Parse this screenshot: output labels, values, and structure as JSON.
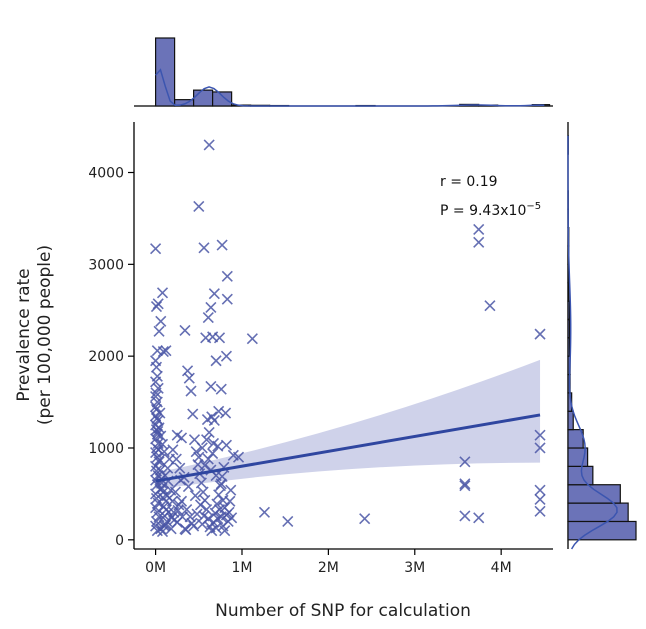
{
  "chart_data": {
    "type": "scatter",
    "title": "",
    "xlabel": "Number of SNP for calculation",
    "ylabel_line1": "Prevalence rate",
    "ylabel_line2": "(per 100,000 people)",
    "xlim": [
      -250000,
      4600000
    ],
    "ylim": [
      -100,
      4550
    ],
    "x_ticks": [
      0,
      1000000,
      2000000,
      3000000,
      4000000
    ],
    "x_tick_labels": [
      "0M",
      "1M",
      "2M",
      "3M",
      "4M"
    ],
    "y_ticks": [
      0,
      1000,
      2000,
      3000,
      4000
    ],
    "y_tick_labels": [
      "0",
      "1000",
      "2000",
      "3000",
      "4000"
    ],
    "grid": false,
    "marker": "x",
    "colors": {
      "points": "#4a56a6",
      "regression": "#2f46a0",
      "ci_band": "#c7cae6",
      "hist_fill": "#6b73b8",
      "kde": "#3b55b0"
    },
    "annotation": {
      "r_text": "r = 0.19",
      "p_prefix": "P = 9.43x10",
      "p_exponent": "−5"
    },
    "regression": {
      "x": [
        0,
        4450000
      ],
      "y": [
        640,
        1360
      ],
      "ci_upper_end": 1960,
      "ci_lower_end": 840
    },
    "marginal_x": {
      "bins": [
        {
          "x0": 0,
          "x1": 220000,
          "count": 300
        },
        {
          "x0": 220000,
          "x1": 440000,
          "count": 28
        },
        {
          "x0": 440000,
          "x1": 660000,
          "count": 70
        },
        {
          "x0": 660000,
          "x1": 880000,
          "count": 62
        },
        {
          "x0": 880000,
          "x1": 1100000,
          "count": 4
        },
        {
          "x0": 1100000,
          "x1": 1320000,
          "count": 3
        },
        {
          "x0": 1320000,
          "x1": 1540000,
          "count": 2
        },
        {
          "x0": 2320000,
          "x1": 2540000,
          "count": 2
        },
        {
          "x0": 3520000,
          "x1": 3740000,
          "count": 7
        },
        {
          "x0": 3740000,
          "x1": 3960000,
          "count": 4
        },
        {
          "x0": 4360000,
          "x1": 4560000,
          "count": 6
        }
      ],
      "max_count": 300
    },
    "marginal_y": {
      "bins": [
        {
          "y0": 0,
          "y1": 200,
          "count": 260
        },
        {
          "y0": 200,
          "y1": 400,
          "count": 230
        },
        {
          "y0": 400,
          "y1": 600,
          "count": 200
        },
        {
          "y0": 600,
          "y1": 800,
          "count": 95
        },
        {
          "y0": 800,
          "y1": 1000,
          "count": 75
        },
        {
          "y0": 1000,
          "y1": 1200,
          "count": 58
        },
        {
          "y0": 1200,
          "y1": 1400,
          "count": 20
        },
        {
          "y0": 1400,
          "y1": 1600,
          "count": 14
        },
        {
          "y0": 1600,
          "y1": 1800,
          "count": 8
        },
        {
          "y0": 1800,
          "y1": 2000,
          "count": 8
        },
        {
          "y0": 2000,
          "y1": 2200,
          "count": 6
        },
        {
          "y0": 2200,
          "y1": 2400,
          "count": 6
        },
        {
          "y0": 2400,
          "y1": 2600,
          "count": 6
        },
        {
          "y0": 2600,
          "y1": 2800,
          "count": 3
        },
        {
          "y0": 2800,
          "y1": 3000,
          "count": 2
        },
        {
          "y0": 3000,
          "y1": 3200,
          "count": 3
        },
        {
          "y0": 3200,
          "y1": 3400,
          "count": 3
        },
        {
          "y0": 3400,
          "y1": 3600,
          "count": 1
        },
        {
          "y0": 3600,
          "y1": 3800,
          "count": 1
        },
        {
          "y0": 4200,
          "y1": 4400,
          "count": 1
        }
      ],
      "max_count": 260
    },
    "points": [
      [
        0,
        3170
      ],
      [
        10000,
        2540
      ],
      [
        30000,
        2570
      ],
      [
        60000,
        2380
      ],
      [
        80000,
        2690
      ],
      [
        90000,
        2050
      ],
      [
        120000,
        2060
      ],
      [
        40000,
        2270
      ],
      [
        20000,
        2060
      ],
      [
        0,
        1950
      ],
      [
        10000,
        1880
      ],
      [
        20000,
        1780
      ],
      [
        0,
        1720
      ],
      [
        30000,
        1650
      ],
      [
        0,
        1560
      ],
      [
        20000,
        1500
      ],
      [
        10000,
        1420
      ],
      [
        0,
        1350
      ],
      [
        30000,
        1300
      ],
      [
        0,
        1250
      ],
      [
        10000,
        1200
      ],
      [
        20000,
        1150
      ],
      [
        0,
        1100
      ],
      [
        30000,
        1050
      ],
      [
        10000,
        1000
      ],
      [
        0,
        950
      ],
      [
        20000,
        900
      ],
      [
        40000,
        850
      ],
      [
        0,
        800
      ],
      [
        10000,
        750
      ],
      [
        30000,
        700
      ],
      [
        0,
        650
      ],
      [
        20000,
        600
      ],
      [
        50000,
        550
      ],
      [
        0,
        500
      ],
      [
        10000,
        450
      ],
      [
        30000,
        400
      ],
      [
        0,
        350
      ],
      [
        20000,
        300
      ],
      [
        40000,
        250
      ],
      [
        10000,
        200
      ],
      [
        0,
        150
      ],
      [
        60000,
        120
      ],
      [
        20000,
        100
      ],
      [
        80000,
        90
      ],
      [
        100000,
        150
      ],
      [
        130000,
        200
      ],
      [
        150000,
        300
      ],
      [
        120000,
        420
      ],
      [
        90000,
        520
      ],
      [
        70000,
        620
      ],
      [
        110000,
        700
      ],
      [
        140000,
        780
      ],
      [
        160000,
        880
      ],
      [
        100000,
        960
      ],
      [
        80000,
        1040
      ],
      [
        60000,
        1130
      ],
      [
        40000,
        1220
      ],
      [
        50000,
        1380
      ],
      [
        0,
        1450
      ],
      [
        5000,
        1600
      ],
      [
        15000,
        1320
      ],
      [
        25000,
        1180
      ],
      [
        35000,
        980
      ],
      [
        45000,
        870
      ],
      [
        55000,
        760
      ],
      [
        65000,
        660
      ],
      [
        75000,
        560
      ],
      [
        85000,
        460
      ],
      [
        95000,
        360
      ],
      [
        105000,
        260
      ],
      [
        115000,
        160
      ],
      [
        125000,
        330
      ],
      [
        135000,
        480
      ],
      [
        145000,
        640
      ],
      [
        175000,
        540
      ],
      [
        185000,
        240
      ],
      [
        195000,
        420
      ],
      [
        210000,
        300
      ],
      [
        230000,
        520
      ],
      [
        250000,
        190
      ],
      [
        270000,
        380
      ],
      [
        290000,
        650
      ],
      [
        310000,
        250
      ],
      [
        250000,
        1140
      ],
      [
        300000,
        1110
      ],
      [
        340000,
        2280
      ],
      [
        370000,
        1840
      ],
      [
        390000,
        1760
      ],
      [
        410000,
        1620
      ],
      [
        430000,
        1370
      ],
      [
        450000,
        1090
      ],
      [
        470000,
        960
      ],
      [
        490000,
        820
      ],
      [
        510000,
        720
      ],
      [
        530000,
        620
      ],
      [
        550000,
        520
      ],
      [
        570000,
        430
      ],
      [
        590000,
        330
      ],
      [
        610000,
        230
      ],
      [
        630000,
        140
      ],
      [
        650000,
        100
      ],
      [
        670000,
        190
      ],
      [
        690000,
        290
      ],
      [
        710000,
        390
      ],
      [
        730000,
        490
      ],
      [
        750000,
        590
      ],
      [
        770000,
        690
      ],
      [
        790000,
        790
      ],
      [
        500000,
        3630
      ],
      [
        560000,
        3180
      ],
      [
        620000,
        4300
      ],
      [
        640000,
        2530
      ],
      [
        680000,
        2680
      ],
      [
        610000,
        2420
      ],
      [
        580000,
        2200
      ],
      [
        660000,
        2210
      ],
      [
        740000,
        2200
      ],
      [
        700000,
        1950
      ],
      [
        640000,
        1670
      ],
      [
        760000,
        1640
      ],
      [
        730000,
        1400
      ],
      [
        650000,
        1340
      ],
      [
        600000,
        1310
      ],
      [
        680000,
        1300
      ],
      [
        620000,
        1170
      ],
      [
        590000,
        1090
      ],
      [
        670000,
        1050
      ],
      [
        720000,
        1020
      ],
      [
        660000,
        940
      ],
      [
        610000,
        880
      ],
      [
        570000,
        810
      ],
      [
        640000,
        760
      ],
      [
        700000,
        700
      ],
      [
        760000,
        610
      ],
      [
        780000,
        430
      ],
      [
        800000,
        350
      ],
      [
        820000,
        270
      ],
      [
        840000,
        200
      ],
      [
        770000,
        3210
      ],
      [
        830000,
        2870
      ],
      [
        830000,
        2620
      ],
      [
        820000,
        2000
      ],
      [
        810000,
        1380
      ],
      [
        900000,
        920
      ],
      [
        960000,
        900
      ],
      [
        1120000,
        2190
      ],
      [
        820000,
        1030
      ],
      [
        870000,
        540
      ],
      [
        880000,
        240
      ],
      [
        1260000,
        300
      ],
      [
        1530000,
        200
      ],
      [
        2420000,
        230
      ],
      [
        3580000,
        850
      ],
      [
        3580000,
        610
      ],
      [
        3580000,
        590
      ],
      [
        3580000,
        260
      ],
      [
        3740000,
        3380
      ],
      [
        3740000,
        3240
      ],
      [
        3740000,
        240
      ],
      [
        3870000,
        2550
      ],
      [
        4450000,
        2240
      ],
      [
        4450000,
        1140
      ],
      [
        4450000,
        1000
      ],
      [
        4450000,
        540
      ],
      [
        4450000,
        440
      ],
      [
        4450000,
        310
      ],
      [
        350000,
        110
      ],
      [
        420000,
        180
      ],
      [
        480000,
        280
      ],
      [
        520000,
        380
      ],
      [
        460000,
        480
      ],
      [
        380000,
        580
      ],
      [
        330000,
        680
      ],
      [
        280000,
        780
      ],
      [
        240000,
        880
      ],
      [
        200000,
        980
      ],
      [
        180000,
        120
      ],
      [
        220000,
        220
      ],
      [
        260000,
        320
      ],
      [
        300000,
        420
      ],
      [
        340000,
        120
      ],
      [
        360000,
        330
      ],
      [
        400000,
        250
      ],
      [
        440000,
        150
      ],
      [
        540000,
        170
      ],
      [
        560000,
        260
      ],
      [
        700000,
        130
      ],
      [
        720000,
        230
      ],
      [
        740000,
        330
      ],
      [
        760000,
        250
      ],
      [
        780000,
        150
      ],
      [
        800000,
        100
      ],
      [
        850000,
        300
      ],
      [
        860000,
        420
      ],
      [
        500000,
        900
      ],
      [
        540000,
        1000
      ]
    ]
  }
}
